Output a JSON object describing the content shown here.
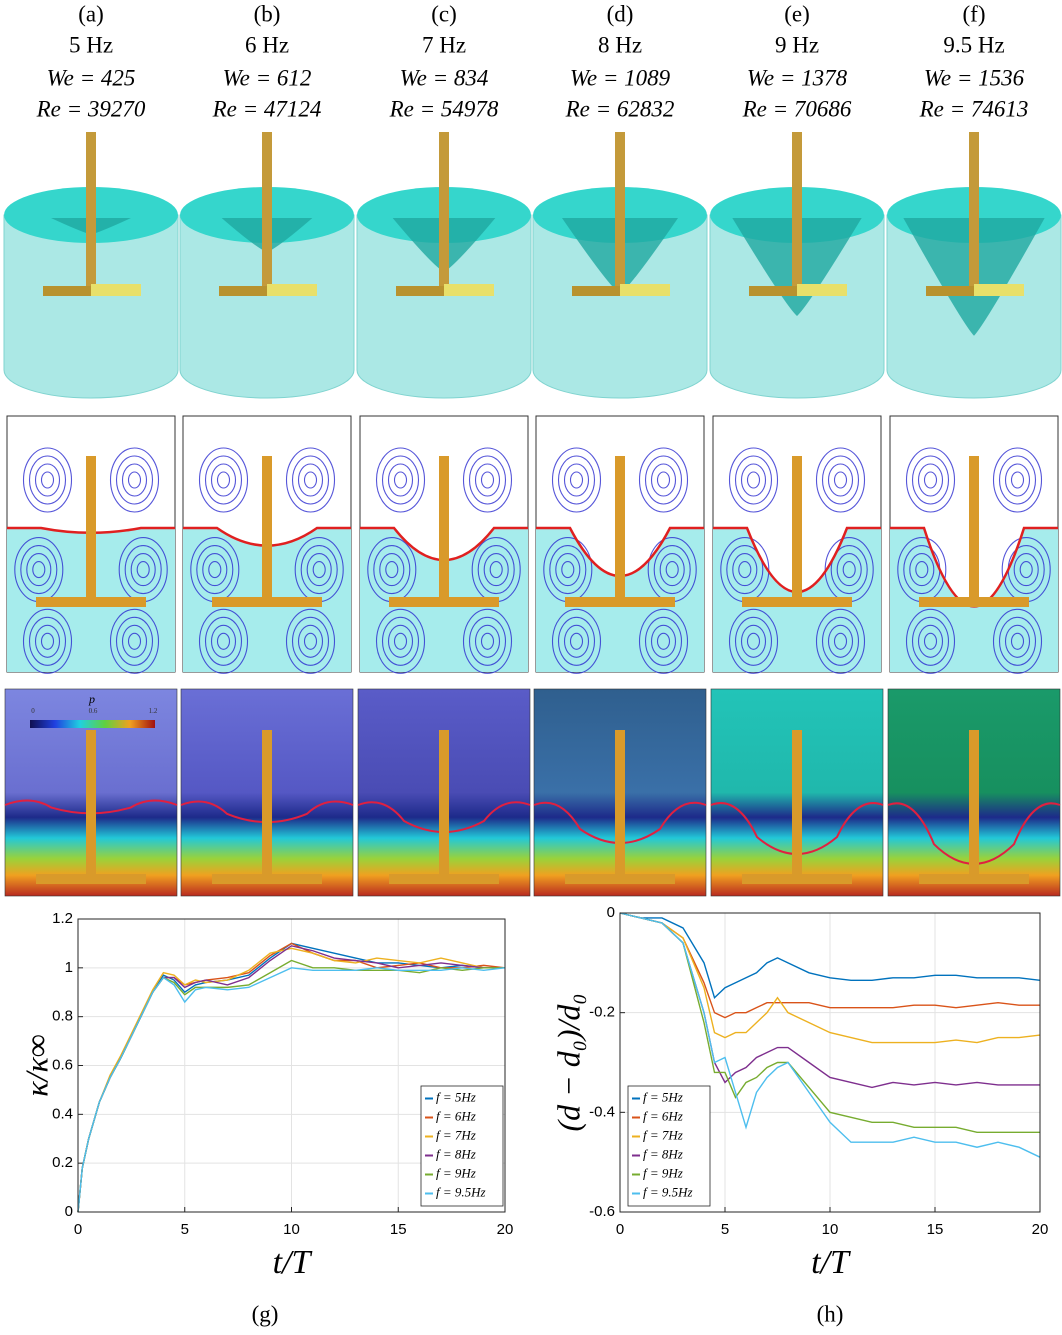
{
  "columns": [
    {
      "label": "(a)",
      "freq": "5 Hz",
      "we": "We = 425",
      "re": "Re = 39270"
    },
    {
      "label": "(b)",
      "freq": "6 Hz",
      "we": "We = 612",
      "re": "Re = 47124"
    },
    {
      "label": "(c)",
      "freq": "7 Hz",
      "we": "We = 834",
      "re": "Re = 54978"
    },
    {
      "label": "(d)",
      "freq": "8 Hz",
      "we": "We = 1089",
      "re": "Re = 62832"
    },
    {
      "label": "(e)",
      "freq": "9 Hz",
      "we": "We = 1378",
      "re": "Re = 70686"
    },
    {
      "label": "(f)",
      "freq": "9.5 Hz",
      "we": "We = 1536",
      "re": "Re = 74613"
    }
  ],
  "colorbar": {
    "title": "p",
    "ticks": [
      "0",
      "0.6",
      "1.2"
    ]
  },
  "chart_data": [
    {
      "type": "line",
      "label": "(g)",
      "xlabel": "t/T",
      "ylabel": "κ/κ∞",
      "xlim": [
        0,
        20
      ],
      "xticks": [
        0,
        5,
        10,
        15,
        20
      ],
      "ylim": [
        0,
        1.2
      ],
      "yticks": [
        0,
        0.2,
        0.4,
        0.6,
        0.8,
        1,
        1.2
      ],
      "grid": true,
      "legend": "lower right",
      "x": [
        0,
        0.2,
        0.5,
        1,
        1.5,
        2,
        2.5,
        3,
        3.5,
        4,
        4.5,
        5,
        5.5,
        6,
        7,
        8,
        9,
        10,
        11,
        12,
        13,
        14,
        15,
        16,
        17,
        18,
        19,
        20
      ],
      "series": [
        {
          "name": "f = 5Hz",
          "color": "#0072bd",
          "values": [
            0,
            0.18,
            0.3,
            0.45,
            0.55,
            0.63,
            0.72,
            0.81,
            0.9,
            0.97,
            0.95,
            0.9,
            0.93,
            0.94,
            0.95,
            0.97,
            1.04,
            1.1,
            1.08,
            1.06,
            1.04,
            1.02,
            1.02,
            1.01,
            1.0,
            1.01,
            1.0,
            1.0
          ]
        },
        {
          "name": "f = 6Hz",
          "color": "#d95319",
          "values": [
            0,
            0.18,
            0.3,
            0.45,
            0.55,
            0.63,
            0.72,
            0.81,
            0.9,
            0.96,
            0.96,
            0.93,
            0.94,
            0.95,
            0.96,
            0.98,
            1.05,
            1.1,
            1.06,
            1.03,
            1.03,
            1.0,
            1.01,
            1.02,
            1.0,
            1.0,
            1.01,
            1.0
          ]
        },
        {
          "name": "f = 7Hz",
          "color": "#edb120",
          "values": [
            0,
            0.18,
            0.3,
            0.45,
            0.56,
            0.64,
            0.73,
            0.82,
            0.91,
            0.98,
            0.97,
            0.93,
            0.95,
            0.94,
            0.95,
            0.99,
            1.06,
            1.08,
            1.06,
            1.03,
            1.02,
            1.04,
            1.03,
            1.02,
            1.04,
            1.02,
            1.0,
            1.0
          ]
        },
        {
          "name": "f = 8Hz",
          "color": "#7e2f8e",
          "values": [
            0,
            0.18,
            0.3,
            0.45,
            0.55,
            0.63,
            0.72,
            0.81,
            0.9,
            0.96,
            0.96,
            0.92,
            0.94,
            0.95,
            0.93,
            0.96,
            1.03,
            1.09,
            1.07,
            1.04,
            1.03,
            1.02,
            1.0,
            1.01,
            1.02,
            1.01,
            1.0,
            1.0
          ]
        },
        {
          "name": "f = 9Hz",
          "color": "#77ac30",
          "values": [
            0,
            0.18,
            0.3,
            0.45,
            0.55,
            0.63,
            0.72,
            0.81,
            0.9,
            0.96,
            0.94,
            0.89,
            0.92,
            0.92,
            0.92,
            0.93,
            0.98,
            1.03,
            1.0,
            1.0,
            0.99,
            0.99,
            0.99,
            0.98,
            1.0,
            0.99,
            1.0,
            1.0
          ]
        },
        {
          "name": "f = 9.5Hz",
          "color": "#4dbeee",
          "values": [
            0,
            0.18,
            0.3,
            0.45,
            0.55,
            0.63,
            0.72,
            0.81,
            0.9,
            0.96,
            0.93,
            0.86,
            0.91,
            0.92,
            0.91,
            0.92,
            0.96,
            1.0,
            0.99,
            0.99,
            0.99,
            1.0,
            0.99,
            0.99,
            0.99,
            1.0,
            0.99,
            1.0
          ]
        }
      ]
    },
    {
      "type": "line",
      "label": "(h)",
      "xlabel": "t/T",
      "ylabel": "(d − d₀)/d₀",
      "xlim": [
        0,
        20
      ],
      "xticks": [
        0,
        5,
        10,
        15,
        20
      ],
      "ylim": [
        -0.6,
        0
      ],
      "yticks": [
        -0.6,
        -0.4,
        -0.2,
        0
      ],
      "grid": true,
      "legend": "lower left",
      "x": [
        0,
        1,
        2,
        3,
        4,
        4.5,
        5,
        5.5,
        6,
        6.5,
        7,
        7.5,
        8,
        9,
        10,
        11,
        12,
        13,
        14,
        15,
        16,
        17,
        18,
        19,
        20
      ],
      "series": [
        {
          "name": "f = 5Hz",
          "color": "#0072bd",
          "values": [
            0,
            -0.01,
            -0.01,
            -0.03,
            -0.1,
            -0.17,
            -0.15,
            -0.14,
            -0.13,
            -0.12,
            -0.1,
            -0.09,
            -0.1,
            -0.12,
            -0.13,
            -0.135,
            -0.135,
            -0.13,
            -0.13,
            -0.125,
            -0.125,
            -0.13,
            -0.13,
            -0.13,
            -0.135
          ]
        },
        {
          "name": "f = 6Hz",
          "color": "#d95319",
          "values": [
            0,
            -0.01,
            -0.02,
            -0.05,
            -0.14,
            -0.2,
            -0.21,
            -0.2,
            -0.2,
            -0.19,
            -0.18,
            -0.18,
            -0.18,
            -0.18,
            -0.19,
            -0.19,
            -0.19,
            -0.19,
            -0.185,
            -0.185,
            -0.19,
            -0.185,
            -0.18,
            -0.185,
            -0.185
          ]
        },
        {
          "name": "f = 7Hz",
          "color": "#edb120",
          "values": [
            0,
            -0.01,
            -0.02,
            -0.05,
            -0.15,
            -0.24,
            -0.25,
            -0.24,
            -0.24,
            -0.22,
            -0.2,
            -0.17,
            -0.2,
            -0.22,
            -0.24,
            -0.25,
            -0.26,
            -0.26,
            -0.26,
            -0.26,
            -0.255,
            -0.26,
            -0.25,
            -0.25,
            -0.245
          ]
        },
        {
          "name": "f = 8Hz",
          "color": "#7e2f8e",
          "values": [
            0,
            -0.01,
            -0.02,
            -0.06,
            -0.2,
            -0.3,
            -0.34,
            -0.32,
            -0.31,
            -0.29,
            -0.28,
            -0.27,
            -0.27,
            -0.3,
            -0.33,
            -0.34,
            -0.35,
            -0.34,
            -0.345,
            -0.34,
            -0.345,
            -0.34,
            -0.345,
            -0.345,
            -0.345
          ]
        },
        {
          "name": "f = 9Hz",
          "color": "#77ac30",
          "values": [
            0,
            -0.01,
            -0.02,
            -0.06,
            -0.22,
            -0.32,
            -0.32,
            -0.37,
            -0.34,
            -0.33,
            -0.31,
            -0.3,
            -0.3,
            -0.35,
            -0.4,
            -0.41,
            -0.42,
            -0.42,
            -0.43,
            -0.43,
            -0.43,
            -0.44,
            -0.44,
            -0.44,
            -0.44
          ]
        },
        {
          "name": "f = 9.5Hz",
          "color": "#4dbeee",
          "values": [
            0,
            -0.01,
            -0.02,
            -0.06,
            -0.2,
            -0.3,
            -0.29,
            -0.36,
            -0.43,
            -0.36,
            -0.33,
            -0.31,
            -0.3,
            -0.36,
            -0.42,
            -0.46,
            -0.46,
            -0.46,
            -0.45,
            -0.46,
            -0.46,
            -0.47,
            -0.46,
            -0.47,
            -0.49
          ]
        }
      ]
    }
  ]
}
